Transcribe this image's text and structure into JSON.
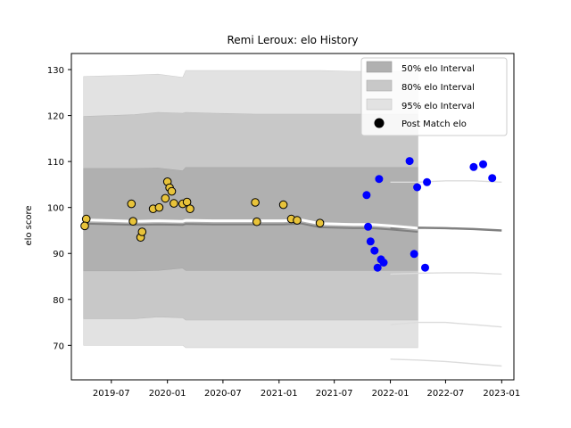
{
  "chart_data": {
    "type": "area",
    "title": "Remi Leroux: elo History",
    "xlabel": "",
    "ylabel": "elo score",
    "xlim": [
      "2019-02-20",
      "2023-02-10"
    ],
    "ylim": [
      62.5,
      133.5
    ],
    "x_ticks": [
      "2019-07",
      "2020-01",
      "2020-07",
      "2021-01",
      "2021-07",
      "2022-01",
      "2022-07",
      "2023-01"
    ],
    "y_ticks": [
      70,
      80,
      90,
      100,
      110,
      120,
      130
    ],
    "grid": false,
    "legend": {
      "placement": "top-right",
      "entries": [
        "50% elo Interval",
        "80% elo Interval",
        "95% elo Interval",
        "Post Match elo"
      ]
    },
    "colors": {
      "band_50": "#b0b0b0",
      "band_80": "#c8c8c8",
      "band_95": "#e2e2e2",
      "mean_line": "#ffffff",
      "trailing_line": "#808080",
      "match_fill_early": "#e8c33a",
      "match_fill_late": "#0000ff",
      "match_edge_early": "#000000"
    },
    "bands": {
      "x": [
        "2019-04-01",
        "2019-09-15",
        "2019-12-01",
        "2020-02-20",
        "2020-03-01",
        "2020-06-01",
        "2020-10-15",
        "2021-01-15",
        "2021-03-15",
        "2021-05-15",
        "2021-09-01",
        "2021-11-01",
        "2022-01-01",
        "2022-04-01"
      ],
      "p97_5": [
        128.5,
        128.8,
        129.0,
        128.3,
        129.8,
        129.8,
        129.8,
        129.8,
        129.8,
        129.8,
        129.6,
        129.6,
        129.6,
        129.6
      ],
      "p90": [
        119.8,
        120.2,
        120.7,
        120.5,
        120.7,
        120.5,
        120.3,
        120.3,
        120.3,
        120.3,
        120.3,
        120.3,
        120.3,
        120.3
      ],
      "p75": [
        108.5,
        108.5,
        108.6,
        108.0,
        108.7,
        108.7,
        108.7,
        108.7,
        108.7,
        108.7,
        108.7,
        108.7,
        108.7,
        108.7
      ],
      "mean": [
        97.3,
        97.0,
        97.1,
        97.0,
        97.2,
        97.1,
        97.1,
        97.1,
        97.3,
        96.5,
        96.3,
        96.3,
        96.0,
        95.5
      ],
      "p25": [
        86.2,
        86.2,
        86.3,
        86.8,
        86.3,
        86.3,
        86.3,
        86.3,
        86.3,
        86.3,
        86.3,
        86.3,
        86.3,
        86.3
      ],
      "p10": [
        75.8,
        75.8,
        76.2,
        76.0,
        75.5,
        75.5,
        75.5,
        75.5,
        75.5,
        75.5,
        75.5,
        75.5,
        75.5,
        75.5
      ],
      "p2_5": [
        70.0,
        70.0,
        70.0,
        70.0,
        69.5,
        69.5,
        69.5,
        69.5,
        69.5,
        69.5,
        69.5,
        69.5,
        69.5,
        69.5
      ]
    },
    "trailing_bands": {
      "x": [
        "2022-01-01",
        "2022-04-01",
        "2022-07-01",
        "2022-10-01",
        "2023-01-01"
      ],
      "upper": [
        105.5,
        105.5,
        105.8,
        105.8,
        105.5
      ],
      "mean": [
        95.5,
        95.6,
        95.5,
        95.3,
        95.0
      ],
      "lower": [
        85.5,
        85.7,
        85.8,
        85.8,
        85.5
      ],
      "low80": [
        74.5,
        75.0,
        75.0,
        74.5,
        74.0
      ],
      "low95": [
        67.0,
        66.8,
        66.5,
        66.0,
        65.5
      ]
    },
    "matches_early": [
      {
        "x": "2019-04-10",
        "y": 97.5
      },
      {
        "x": "2019-04-05",
        "y": 96.0
      },
      {
        "x": "2019-09-05",
        "y": 100.8
      },
      {
        "x": "2019-09-10",
        "y": 97.0
      },
      {
        "x": "2019-10-05",
        "y": 93.5
      },
      {
        "x": "2019-10-10",
        "y": 94.7
      },
      {
        "x": "2019-11-15",
        "y": 99.7
      },
      {
        "x": "2019-12-05",
        "y": 100.0
      },
      {
        "x": "2019-12-25",
        "y": 102.0
      },
      {
        "x": "2020-01-01",
        "y": 105.6
      },
      {
        "x": "2020-01-08",
        "y": 104.3
      },
      {
        "x": "2020-01-15",
        "y": 103.5
      },
      {
        "x": "2020-01-22",
        "y": 100.9
      },
      {
        "x": "2020-02-20",
        "y": 100.8
      },
      {
        "x": "2020-03-05",
        "y": 101.2
      },
      {
        "x": "2020-03-15",
        "y": 99.7
      },
      {
        "x": "2020-10-15",
        "y": 101.1
      },
      {
        "x": "2020-10-20",
        "y": 96.9
      },
      {
        "x": "2021-01-15",
        "y": 100.6
      },
      {
        "x": "2021-02-10",
        "y": 97.5
      },
      {
        "x": "2021-03-01",
        "y": 97.2
      },
      {
        "x": "2021-05-15",
        "y": 96.6
      }
    ],
    "matches_late": [
      {
        "x": "2021-10-15",
        "y": 102.7
      },
      {
        "x": "2021-10-20",
        "y": 95.8
      },
      {
        "x": "2021-10-28",
        "y": 92.6
      },
      {
        "x": "2021-11-10",
        "y": 90.6
      },
      {
        "x": "2021-11-20",
        "y": 86.9
      },
      {
        "x": "2021-11-25",
        "y": 106.2
      },
      {
        "x": "2021-12-01",
        "y": 88.7
      },
      {
        "x": "2021-12-10",
        "y": 88.0
      },
      {
        "x": "2022-03-05",
        "y": 110.1
      },
      {
        "x": "2022-03-20",
        "y": 89.9
      },
      {
        "x": "2022-03-30",
        "y": 104.4
      },
      {
        "x": "2022-04-25",
        "y": 86.9
      },
      {
        "x": "2022-05-01",
        "y": 105.5
      },
      {
        "x": "2022-10-01",
        "y": 108.8
      },
      {
        "x": "2022-11-01",
        "y": 109.4
      },
      {
        "x": "2022-12-01",
        "y": 106.4
      }
    ]
  }
}
